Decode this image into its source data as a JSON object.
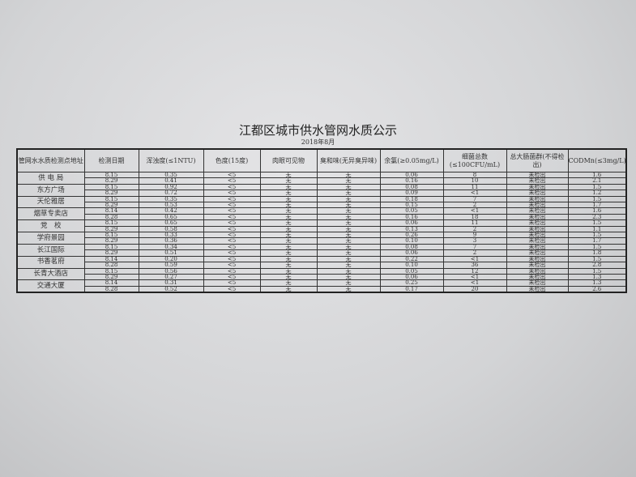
{
  "title": "江都区城市供水管网水质公示",
  "subtitle": "2018年8月",
  "headers": [
    "管网水水质检测点地址",
    "检测日期",
    "浑浊度(≤1NTU)",
    "色度(15度)",
    "肉眼可见物",
    "臭和味(无异臭异味)",
    "余氯(≥0.05mg/L)",
    "细菌总数(≤100CFU/mL)",
    "总大肠菌群(不得检出)",
    "CODMn(≤3mg/L)"
  ],
  "sites": [
    {
      "name": "供 电 局",
      "rows": [
        [
          "8.15",
          "0.35",
          "<5",
          "无",
          "无",
          "0.06",
          "8",
          "未检出",
          "1.6"
        ],
        [
          "8.29",
          "0.41",
          "<5",
          "无",
          "无",
          "0.16",
          "10",
          "未检出",
          "2.1"
        ]
      ]
    },
    {
      "name": "东方广场",
      "rows": [
        [
          "8.15",
          "0.92",
          "<5",
          "无",
          "无",
          "0.08",
          "11",
          "未检出",
          "1.5"
        ],
        [
          "8.29",
          "0.72",
          "<5",
          "无",
          "无",
          "0.09",
          "<1",
          "未检出",
          "1.2"
        ]
      ]
    },
    {
      "name": "天伦雅居",
      "rows": [
        [
          "8.15",
          "0.35",
          "<5",
          "无",
          "无",
          "0.18",
          "7",
          "未检出",
          "1.5"
        ],
        [
          "8.29",
          "0.53",
          "<5",
          "无",
          "无",
          "0.15",
          "2",
          "未检出",
          "1.7"
        ]
      ]
    },
    {
      "name": "烟草专卖店",
      "rows": [
        [
          "8.14",
          "0.42",
          "<5",
          "无",
          "无",
          "0.05",
          "<1",
          "未检出",
          "1.6"
        ],
        [
          "8.28",
          "0.65",
          "<5",
          "无",
          "无",
          "0.16",
          "18",
          "未检出",
          "2.3"
        ]
      ]
    },
    {
      "name": "党　校",
      "rows": [
        [
          "8.15",
          "0.65",
          "<5",
          "无",
          "无",
          "0.06",
          "11",
          "未检出",
          "1.5"
        ],
        [
          "8.29",
          "0.58",
          "<5",
          "无",
          "无",
          "0.13",
          "2",
          "未检出",
          "1.1"
        ]
      ]
    },
    {
      "name": "学府景园",
      "rows": [
        [
          "8.15",
          "0.33",
          "<5",
          "无",
          "无",
          "0.26",
          "9",
          "未检出",
          "1.5"
        ],
        [
          "8.29",
          "0.36",
          "<5",
          "无",
          "无",
          "0.10",
          "3",
          "未检出",
          "1.7"
        ]
      ]
    },
    {
      "name": "长江国际",
      "rows": [
        [
          "8.15",
          "0.34",
          "<5",
          "无",
          "无",
          "0.08",
          "7",
          "未检出",
          "1.5"
        ],
        [
          "8.29",
          "0.51",
          "<5",
          "无",
          "无",
          "0.06",
          "2",
          "未检出",
          "1.8"
        ]
      ]
    },
    {
      "name": "书香茗府",
      "rows": [
        [
          "8.14",
          "0.20",
          "<5",
          "无",
          "无",
          "0.22",
          "<1",
          "未检出",
          "1.5"
        ],
        [
          "8.28",
          "0.59",
          "<5",
          "无",
          "无",
          "0.10",
          "36",
          "未检出",
          "2.8"
        ]
      ]
    },
    {
      "name": "长青大酒店",
      "rows": [
        [
          "8.15",
          "0.56",
          "<5",
          "无",
          "无",
          "0.05",
          "12",
          "未检出",
          "1.5"
        ],
        [
          "8.29",
          "0.27",
          "<5",
          "无",
          "无",
          "0.06",
          "<1",
          "未检出",
          "1.3"
        ]
      ]
    },
    {
      "name": "交通大厦",
      "rows": [
        [
          "8.14",
          "0.31",
          "<5",
          "无",
          "无",
          "0.25",
          "<1",
          "未检出",
          "1.3"
        ],
        [
          "8.28",
          "0.52",
          "<5",
          "无",
          "无",
          "0.17",
          "20",
          "未检出",
          "2.6"
        ]
      ]
    }
  ]
}
